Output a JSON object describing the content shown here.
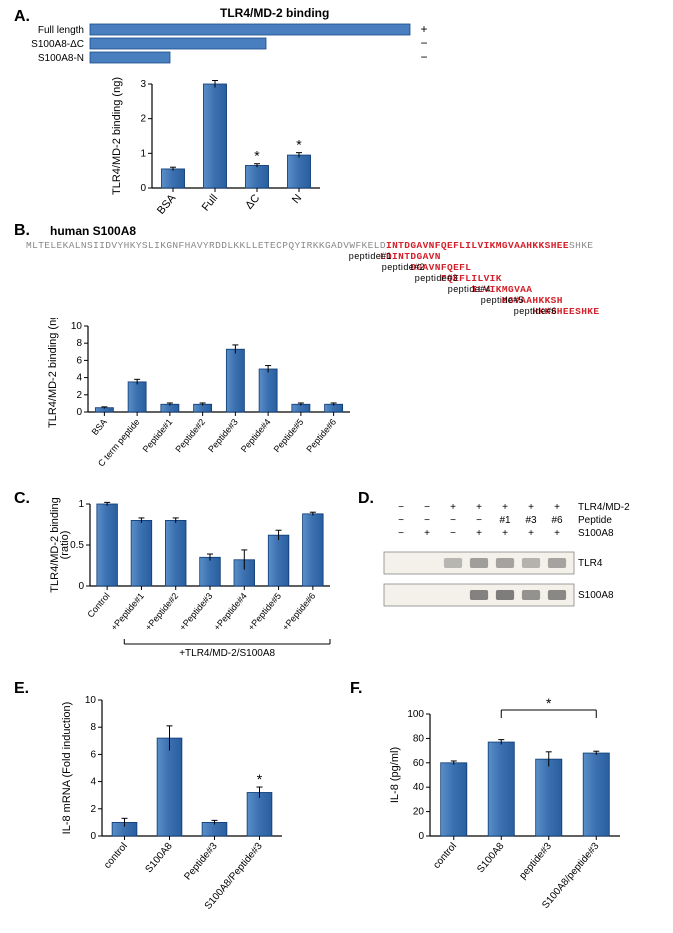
{
  "colors": {
    "bar_fill": "#3a6fb0",
    "bar_stroke": "#0c3a73",
    "diagram_fill": "#4a7fbf",
    "diagram_stroke": "#1b4b8a",
    "axis": "#000000",
    "text": "#000000",
    "seq_gray": "#888888",
    "seq_red": "#d4202a"
  },
  "fonts": {
    "label": 11,
    "tick": 10,
    "title": 12,
    "panel": 16
  },
  "panelA": {
    "label": "A.",
    "title": "TLR4/MD-2 binding",
    "diagram": {
      "rows": [
        {
          "name": "Full length",
          "len": 1.0,
          "sign": "+"
        },
        {
          "name": "S100A8-ΔC",
          "len": 0.55,
          "sign": "−"
        },
        {
          "name": "S100A8-N",
          "len": 0.25,
          "sign": "−"
        }
      ]
    },
    "chart": {
      "ylabel": "TLR4/MD-2 binding (ng)",
      "ylim": [
        0,
        3
      ],
      "yticks": [
        0,
        1,
        2,
        3
      ],
      "categories": [
        "BSA",
        "Full",
        "ΔC",
        "N"
      ],
      "values": [
        0.55,
        3.0,
        0.65,
        0.95
      ],
      "errors": [
        0.05,
        0.1,
        0.05,
        0.07
      ],
      "stars": [
        "",
        "",
        "*",
        "*"
      ],
      "bar_width": 0.55
    }
  },
  "panelB": {
    "label": "B.",
    "seq_title": "human S100A8",
    "seq_gray_pre": "MLTELEKALNSIIDVYHKYSLIKGNFHAVYRDDLKKLLETECPQYIRKKGADVWFKELD",
    "seq_red": "INTDGAVNFQEFLILVIKMGVAAHKKSHEE",
    "seq_gray_post": "SHKE",
    "peptides": [
      {
        "name": "peptide#1",
        "seq": "LDINTDGAVN"
      },
      {
        "name": "peptide#2",
        "seq": "DGAVNFQEFL"
      },
      {
        "name": "peptide#3",
        "seq": "FQEFLILVIK"
      },
      {
        "name": "peptide#4",
        "seq": "ILVIKMGVAA"
      },
      {
        "name": "peptide#5",
        "seq": "MGVAAHKKSH"
      },
      {
        "name": "peptide#6",
        "seq": "HKKSHEESHKE"
      }
    ],
    "chart": {
      "ylabel": "TLR4/MD-2 binding (ng)",
      "ylim": [
        0,
        10
      ],
      "yticks": [
        0,
        2,
        4,
        6,
        8,
        10
      ],
      "categories": [
        "BSA",
        "C term peptide",
        "Peptide#1",
        "Peptide#2",
        "Peptide#3",
        "Peptide#4",
        "Peptide#5",
        "Peptide#6"
      ],
      "values": [
        0.5,
        3.5,
        0.9,
        0.9,
        7.3,
        5.0,
        0.9,
        0.9
      ],
      "errors": [
        0.1,
        0.3,
        0.15,
        0.15,
        0.5,
        0.4,
        0.15,
        0.15
      ],
      "bar_width": 0.55
    }
  },
  "panelC": {
    "label": "C.",
    "chart": {
      "ylabel": "TLR4/MD-2 binding\n(ratio)",
      "ylim": [
        0,
        1
      ],
      "yticks": [
        0,
        0.5,
        1
      ],
      "categories": [
        "Control",
        "+Peptide#1",
        "+Peptide#2",
        "+Peptide#3",
        "+Peptide#4",
        "+Peptide#5",
        "+Peptide#6"
      ],
      "values": [
        1.0,
        0.8,
        0.8,
        0.35,
        0.32,
        0.62,
        0.88
      ],
      "errors": [
        0.02,
        0.03,
        0.03,
        0.04,
        0.12,
        0.06,
        0.02
      ],
      "bar_width": 0.6,
      "bracket_label": "+TLR4/MD-2/S100A8"
    }
  },
  "panelD": {
    "label": "D.",
    "header": {
      "rows": [
        {
          "label": "TLR4/MD-2",
          "vals": [
            "−",
            "−",
            "+",
            "+",
            "+",
            "+",
            "+"
          ]
        },
        {
          "label": "Peptide",
          "vals": [
            "−",
            "−",
            "−",
            "−",
            "#1",
            "#3",
            "#6"
          ]
        },
        {
          "label": "S100A8",
          "vals": [
            "−",
            "+",
            "−",
            "+",
            "+",
            "+",
            "+"
          ]
        }
      ]
    },
    "blots": [
      {
        "label": "TLR4",
        "intensities": [
          0,
          0,
          0.12,
          0.35,
          0.3,
          0.15,
          0.3
        ]
      },
      {
        "label": "S100A8",
        "intensities": [
          0,
          0,
          0,
          0.6,
          0.65,
          0.45,
          0.55
        ]
      }
    ]
  },
  "panelE": {
    "label": "E.",
    "chart": {
      "ylabel": "IL-8 mRNA (Fold induction)",
      "ylim": [
        0,
        10
      ],
      "yticks": [
        0,
        2,
        4,
        6,
        8,
        10
      ],
      "categories": [
        "control",
        "S100A8",
        "Peptide#3",
        "S100A8/Peptide#3"
      ],
      "values": [
        1.0,
        7.2,
        1.0,
        3.2
      ],
      "errors": [
        0.3,
        0.9,
        0.15,
        0.4
      ],
      "stars": [
        "",
        "",
        "",
        "*"
      ],
      "bar_width": 0.55
    }
  },
  "panelF": {
    "label": "F.",
    "chart": {
      "ylabel": "IL-8 (pg/ml)",
      "ylim": [
        0,
        100
      ],
      "yticks": [
        0,
        20,
        40,
        60,
        80,
        100
      ],
      "categories": [
        "control",
        "S100A8",
        "peptide#3",
        "S100A8/peptide#3"
      ],
      "values": [
        60,
        77,
        63,
        68
      ],
      "errors": [
        1.5,
        2,
        6,
        1.5
      ],
      "bar_width": 0.55,
      "sig_bracket": {
        "from": 1,
        "to": 3,
        "label": "*"
      }
    }
  }
}
